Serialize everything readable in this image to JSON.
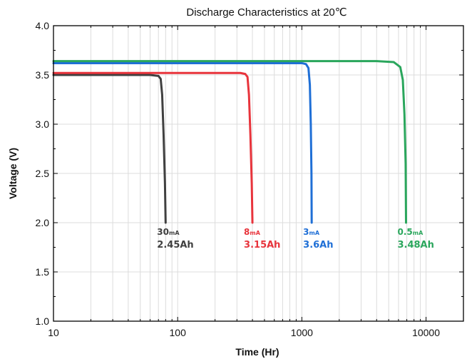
{
  "chart_data": {
    "type": "line",
    "title": "Discharge Characteristics at 20℃",
    "xlabel": "Time (Hr)",
    "ylabel": "Voltage (V)",
    "x_scale": "log",
    "xlim": [
      10,
      20000
    ],
    "ylim": [
      1.0,
      4.0
    ],
    "x_ticks": [
      10,
      100,
      1000,
      10000
    ],
    "x_tick_labels": [
      "10",
      "100",
      "1000",
      "10000"
    ],
    "y_ticks": [
      1.0,
      1.5,
      2.0,
      2.5,
      3.0,
      3.5,
      4.0
    ],
    "y_tick_labels": [
      "1.0",
      "1.5",
      "2.0",
      "2.5",
      "3.0",
      "3.5",
      "4.0"
    ],
    "grid": true,
    "series": [
      {
        "current": "30",
        "current_unit": "mA",
        "capacity": "2.45Ah",
        "color": "#404040",
        "points": [
          [
            10,
            3.5
          ],
          [
            30,
            3.5
          ],
          [
            60,
            3.5
          ],
          [
            70,
            3.49
          ],
          [
            73,
            3.46
          ],
          [
            75,
            3.3
          ],
          [
            77,
            2.9
          ],
          [
            79,
            2.4
          ],
          [
            80,
            2.0
          ]
        ]
      },
      {
        "current": "8",
        "current_unit": "mA",
        "capacity": "3.15Ah",
        "color": "#e8343c",
        "points": [
          [
            10,
            3.52
          ],
          [
            50,
            3.52
          ],
          [
            200,
            3.52
          ],
          [
            320,
            3.52
          ],
          [
            350,
            3.51
          ],
          [
            365,
            3.48
          ],
          [
            375,
            3.3
          ],
          [
            385,
            2.9
          ],
          [
            395,
            2.4
          ],
          [
            400,
            2.0
          ]
        ]
      },
      {
        "current": "3",
        "current_unit": "mA",
        "capacity": "3.6Ah",
        "color": "#1f6fd6",
        "points": [
          [
            10,
            3.62
          ],
          [
            100,
            3.62
          ],
          [
            500,
            3.62
          ],
          [
            1000,
            3.62
          ],
          [
            1080,
            3.61
          ],
          [
            1130,
            3.57
          ],
          [
            1160,
            3.4
          ],
          [
            1180,
            3.0
          ],
          [
            1195,
            2.5
          ],
          [
            1200,
            2.0
          ]
        ]
      },
      {
        "current": "0.5",
        "current_unit": "mA",
        "capacity": "3.48Ah",
        "color": "#2aa65c",
        "points": [
          [
            10,
            3.64
          ],
          [
            100,
            3.64
          ],
          [
            1000,
            3.64
          ],
          [
            4000,
            3.64
          ],
          [
            5500,
            3.63
          ],
          [
            6200,
            3.58
          ],
          [
            6500,
            3.45
          ],
          [
            6700,
            3.1
          ],
          [
            6850,
            2.6
          ],
          [
            6900,
            2.0
          ]
        ]
      }
    ]
  }
}
